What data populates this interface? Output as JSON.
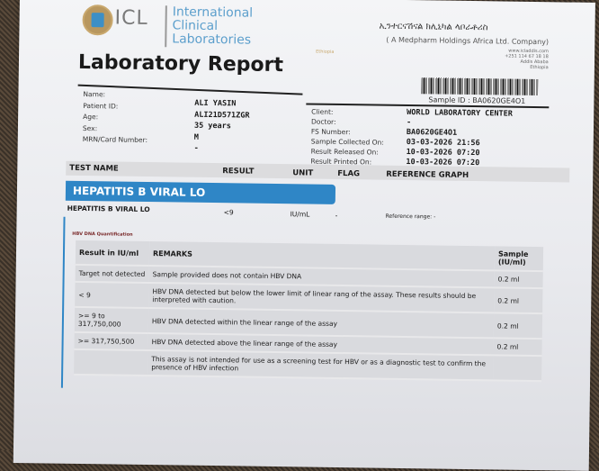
{
  "header": {
    "logo_text": "ICL",
    "lab_name_lines": [
      "International",
      "Clinical",
      "Laboratories"
    ],
    "lab_country": "Ethiopia",
    "amharic_name": "ኢንተርናሽናል ክሊኒካል ላቦራቶሪስ",
    "company_note": "( A Medpharm Holdings Africa Ltd. Company)",
    "contact_lines": [
      "www.icladdis.com",
      "+251 114 67 18 18",
      "Addis Ababa",
      "Ethiopia"
    ],
    "title": "Laboratory Report",
    "sample_id": "Sample ID : BA0620GE4O1"
  },
  "patient": {
    "labels": [
      "Name:",
      "Patient ID:",
      "Age:",
      "Sex:",
      "MRN/Card Number:"
    ],
    "values": [
      "ALI YASIN",
      "ALI21D571ZGR",
      "35 years",
      "M",
      "-"
    ]
  },
  "order": {
    "labels": [
      "Client:",
      "Doctor:",
      "FS Number:",
      "Sample Collected On:",
      "Result Released On:",
      "Result Printed On:"
    ],
    "values": [
      "WORLD LABORATORY CENTER",
      "-",
      "BA0620GE4O1",
      "03-03-2026 21:56",
      "10-03-2026 07:20",
      "10-03-2026 07:20"
    ]
  },
  "results_header": [
    "TEST NAME",
    "RESULT",
    "UNIT",
    "FLAG",
    "REFERENCE GRAPH"
  ],
  "panel_title": "HEPATITIS B VIRAL LO",
  "result_row": {
    "test": "HEPATITIS B VIRAL LO",
    "result": "<9",
    "unit": "IU/mL",
    "flag": "-",
    "reference": "Reference range: -"
  },
  "quant": {
    "title": "HBV DNA Quantification",
    "headers": [
      "Result in IU/ml",
      "REMARKS",
      "Sample (IU/ml)"
    ],
    "rows": [
      [
        "Target not detected",
        "Sample provided does not contain HBV DNA",
        "0.2 ml"
      ],
      [
        "< 9",
        "HBV DNA detected but below the lower limit of linear rang of the assay. These results should be interpreted with caution.",
        "0.2 ml"
      ],
      [
        ">= 9 to 317,750,000",
        "HBV DNA detected within the linear range of the assay",
        "0.2 ml"
      ],
      [
        ">= 317,750,500",
        "HBV DNA detected above the linear range of the assay",
        "0.2 ml"
      ],
      [
        "",
        "This assay is not intended for use as a screening test for HBV or as a diagnostic test to confirm the presence of HBV infection",
        ""
      ]
    ]
  },
  "colors": {
    "accent": "#2f86c6",
    "gold": "#c9a86e"
  }
}
